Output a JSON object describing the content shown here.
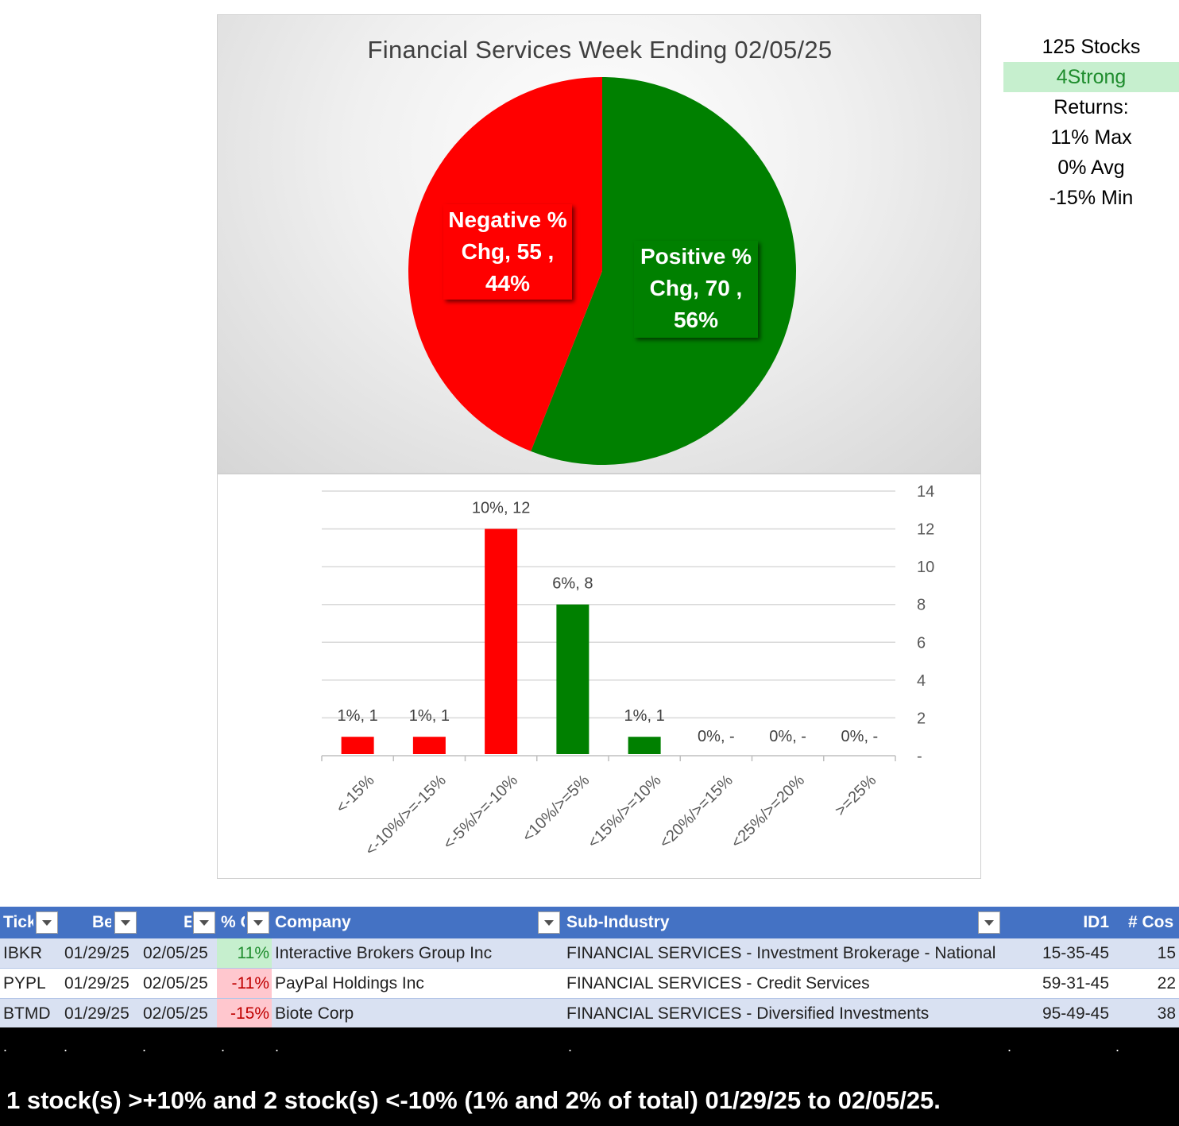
{
  "chart_data": [
    {
      "type": "pie",
      "title": "Financial Services Week Ending 02/05/25",
      "slices": [
        {
          "name": "Positive % Chg",
          "value": 70,
          "percent": "56%",
          "color": "#008000",
          "label_lines": [
            "Positive %",
            "Chg,  70 ,",
            "56%"
          ]
        },
        {
          "name": "Negative % Chg",
          "value": 55,
          "percent": "44%",
          "color": "#ff0000",
          "label_lines": [
            "Negative %",
            "Chg,  55 ,",
            "44%"
          ]
        }
      ]
    },
    {
      "type": "bar",
      "title": "",
      "categories": [
        "<-15%",
        "<-10%/>=-15%",
        "<-5%/>=-10%",
        "<10%/>=5%",
        "<15%/>=10%",
        "<20%/>=15%",
        "<25%/>=20%",
        ">=25%"
      ],
      "values": [
        1,
        1,
        12,
        8,
        1,
        0,
        0,
        0
      ],
      "data_labels": [
        "1%,  1",
        "1%,  1",
        "10%,  12",
        "6%,  8",
        "1%,  1",
        "0%,  -",
        "0%,  -",
        "0%,  -"
      ],
      "colors": [
        "#ff0000",
        "#ff0000",
        "#ff0000",
        "#008000",
        "#008000",
        "#008000",
        "#008000",
        "#008000"
      ],
      "ylim": [
        0,
        14
      ],
      "yticks": [
        {
          "value": 0,
          "label": "-"
        },
        {
          "value": 2,
          "label": "2"
        },
        {
          "value": 4,
          "label": "4"
        },
        {
          "value": 6,
          "label": "6"
        },
        {
          "value": 8,
          "label": "8"
        },
        {
          "value": 10,
          "label": "10"
        },
        {
          "value": 12,
          "label": "12"
        },
        {
          "value": 14,
          "label": "14"
        }
      ],
      "y_axis_side": "right",
      "grid": true,
      "xlabel": "",
      "ylabel": ""
    }
  ],
  "stats": {
    "stocks": "125 Stocks",
    "strength": "4Strong",
    "returns_label": "Returns:",
    "max": "11% Max",
    "avg": "0% Avg",
    "min": "-15% Min"
  },
  "table": {
    "headers": [
      "Tick",
      "Be",
      "E",
      "% C",
      "Company",
      "Sub-Industry",
      "ID1",
      "# Cos"
    ],
    "rows": [
      [
        "IBKR",
        "01/29/25",
        "02/05/25",
        "11%",
        "Interactive Brokers Group Inc",
        "FINANCIAL SERVICES - Investment Brokerage - National",
        "15-35-45",
        "15"
      ],
      [
        "PYPL",
        "01/29/25",
        "02/05/25",
        "-11%",
        "PayPal Holdings Inc",
        "FINANCIAL SERVICES - Credit Services",
        "59-31-45",
        "22"
      ],
      [
        "BTMD",
        "01/29/25",
        "02/05/25",
        "-15%",
        "Biote Corp",
        "FINANCIAL SERVICES - Diversified Investments",
        "95-49-45",
        "38"
      ]
    ]
  },
  "footer": {
    "summary": "1 stock(s) >+10% and 2 stock(s) <-10% (1% and 2% of total) 01/29/25 to 02/05/25."
  }
}
